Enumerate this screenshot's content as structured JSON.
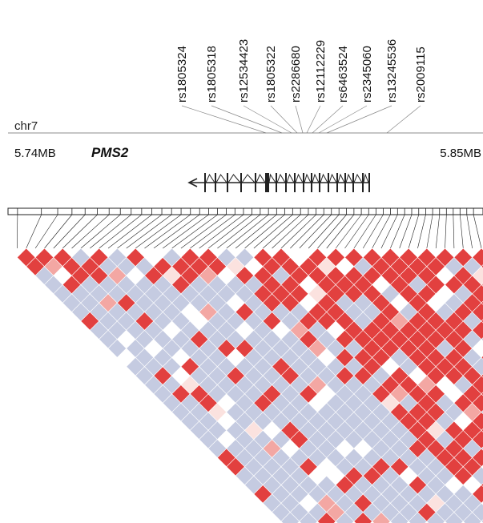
{
  "chromosome": "chr7",
  "region_start": "5.74MB",
  "region_end": "5.85MB",
  "gene": "PMS2",
  "snps": [
    "rs1805324",
    "rs1805318",
    "rs12534423",
    "rs1805322",
    "rs2286680",
    "rs12112229",
    "rs6463524",
    "rs2345060",
    "rs13245536",
    "rs2009115"
  ],
  "marker_count": 52,
  "colors": {
    "strong_ld": "#e2403f",
    "moderate_ld": "#f3a7a3",
    "weak_ld": "#fbe2df",
    "no_ld": "#ffffff",
    "uninformative": "#c5cbe1",
    "line": "#222222",
    "guide_line": "#888888"
  },
  "ld_matrix_rows": [
    "PBW.BBBBBBBBBBBBBBBBBBBBBBBBBBBBBBBBBBBBBBBBBBBBBBBBBBB",
    "B.RRWRRRRRRRWRRRRRRRRRRRRRRRRWRRRRRRRRRRRRRRRRRRRRR",
    "RWRRRBRRRRRWRRRRRRRRRRRRRRWRRRRRRRRRRRRRRRRRRRRRR",
    "RBRRRRRRRWRRRRRRRRRRRRRRRRRBRRRRRRRRRRRRRRRRRRRR",
    "RRRRRRRRRRRRRBRRRRRRRRWRRRRRRRRRRRRRRRRRRRRRRRR",
    "RRRRRRRRRRRRRRWRRRRRRRRRRRRRRRRRRRRRRRRRRRRRRR",
    "RRRRRRWRRRRRRRRRRRRRRRRRRRRRRRRRRRRRRRRRRRRRR",
    "RRWRRRRRRRRRRRRRRRRRRRRRRRRRRRRRRRRRRRRRRRRR",
    "RRRRRRRRRRRRRRRRRRRRRRRRRRRRRRRRRRRRRRRRRRR",
    "RRRRRRRRRRRRRRRRRRRRRRRRRRRRRRRRRRRRRRRRRR",
    "RRRRRRRRRRRRRRRRRRRRRRRRRRRRRRRRRRRRRRRRR",
    "RRRRRRRRRRRRRRRRRRRRRRRRRRRRRRRRRRRRRRRR",
    "RRRRRRRRRRRRRRRRRRRRRRRRRRRRRRRRRRRRRRR",
    "RRRRRRRRRRRRRRRRRRRRRRRRRRRRRRRRRRRRRR",
    "RRRRRRRRRRRRRRRRRRRRRRRRRRRRRRRRRRRRR",
    "RRRRRRRRRRRRRRRRRRRRRRRRRRRRRRRRRRRR",
    "RRRRRRRRRRRRRRRRRRRRRRRRRRRRRRRRRRR",
    "RRRRRRRRRRRRRRRRRRRRRRRRRRRRRRRRRR",
    "RRRRRRRRRRRRRRRRRRRRRRRRRRRRRRRRR",
    "RRRRRRRRRRRRRRRRRRRRRRRRRRRRRRRR",
    "RRRRRRRRRRRRRRRRRRRRRRRRRRRRRRR",
    "RRRRRRRRRRRRRRRRRRRRRRRRRRRRRR",
    "RRRRRRRRRRRRRRRRRRRRRRRRRRRRR",
    "RRRRRRRRRRRRRRRRRRRRRRRRRRRR",
    "RRRRRRRRRRRRRRRRRRRRRRRRRRR",
    "RRRRRRRRRRRRRRRRRRRRRRRRRR",
    "RRRRRRRRRRRRRRRRRRRRRRRRR",
    "RRRRRRRRRRRRRRRRRRRRRRRR",
    "RRRRRRRRRRRRRRRRRRRRRRR",
    "RRRRRRRRRRRRRRRRRRRRRR",
    "RRRRRRRRRRRRRRRRRRRRR",
    "RRRRRRRRRRRRRRRRRRRR",
    "RRRRRRRRRRRRRRRRRRR",
    "RRRRRRRRRRRRRRRRRR",
    "RRRRRRRRRRRRRRRRR",
    "RRRRRRRRRRRRRRRR",
    "RRRRRRRRRRRRRRR",
    "RRRRRRRRRRRRRR",
    "RRRRRRRRRRRRR",
    "RRRRRRRRRRRR",
    "RRRRRRRRRRR",
    "RRRRRRRRRR",
    "RRRRRRRRR",
    "RRRRRRRR",
    "RRRRRRR",
    "RRRRRR",
    "RRRRR",
    "RRRR",
    "RRR",
    "RR",
    "R"
  ]
}
